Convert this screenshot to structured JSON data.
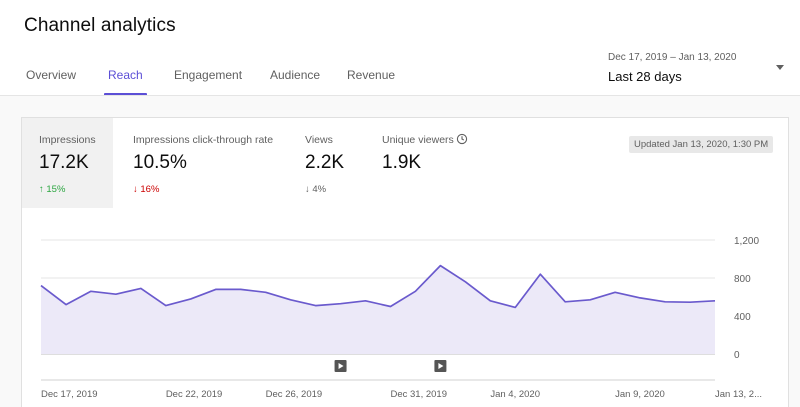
{
  "header": {
    "title": "Channel analytics"
  },
  "tabs": [
    {
      "label": "Overview",
      "active": false
    },
    {
      "label": "Reach",
      "active": true
    },
    {
      "label": "Engagement",
      "active": false
    },
    {
      "label": "Audience",
      "active": false
    },
    {
      "label": "Revenue",
      "active": false
    }
  ],
  "date_selector": {
    "range": "Dec 17, 2019 – Jan 13, 2020",
    "period": "Last 28 days",
    "icon": "caret-down-icon"
  },
  "metrics": [
    {
      "label": "Impressions",
      "value": "17.2K",
      "change": "15%",
      "direction": "up",
      "selected": true
    },
    {
      "label": "Impressions click-through rate",
      "value": "10.5%",
      "change": "16%",
      "direction": "down",
      "selected": false
    },
    {
      "label": "Views",
      "value": "2.2K",
      "change": "4%",
      "direction": "down-neutral",
      "selected": false
    },
    {
      "label": "Unique viewers",
      "value": "1.9K",
      "change": "",
      "direction": "",
      "selected": false,
      "icon": "clock-icon"
    }
  ],
  "updated": "Updated Jan 13, 2020, 1:30 PM",
  "colors": {
    "accent": "#5c4fd6",
    "line": "#6a5acd",
    "fill": "#ece9f8",
    "up": "#2ba640",
    "down": "#cc0000"
  },
  "chart_data": {
    "type": "area",
    "series": [
      {
        "values": [
          720,
          520,
          660,
          630,
          690,
          510,
          580,
          680,
          680,
          650,
          570,
          510,
          530,
          560,
          500,
          660,
          930,
          760,
          560,
          490,
          840,
          550,
          570,
          650,
          590,
          550,
          545,
          560
        ]
      }
    ],
    "x_tick_labels": [
      "Dec 17, 2019",
      "Dec 22, 2019",
      "Dec 26, 2019",
      "Dec 31, 2019",
      "Jan 4, 2020",
      "Jan 9, 2020",
      "Jan 13, 2..."
    ],
    "x_tick_index": [
      0,
      5,
      9,
      14,
      18,
      23,
      27
    ],
    "y_ticks": [
      "1,200",
      "800",
      "400",
      "0"
    ],
    "ylim": [
      0,
      1200
    ],
    "grid": true,
    "markers": [
      {
        "index": 12,
        "icon": "video-marker-icon"
      },
      {
        "index": 16,
        "icon": "video-marker-icon"
      }
    ]
  }
}
